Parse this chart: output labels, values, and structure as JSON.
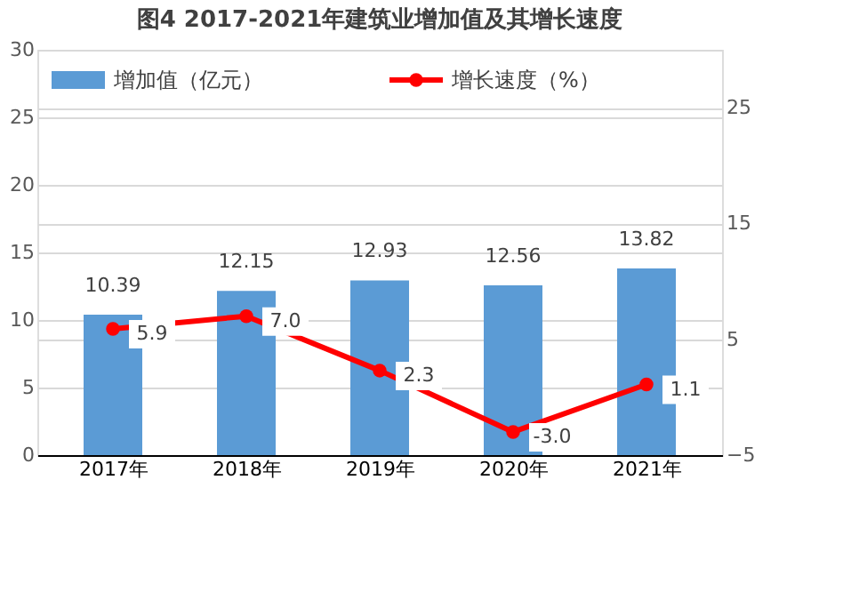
{
  "chart_data": {
    "type": "bar",
    "title": "图4   2017-2021年建筑业增加值及其增长速度",
    "categories": [
      "2017年",
      "2018年",
      "2019年",
      "2020年",
      "2021年"
    ],
    "series": [
      {
        "name": "增加值（亿元）",
        "color": "#5b9bd5",
        "values": [
          10.39,
          12.15,
          12.93,
          12.56,
          13.82
        ]
      },
      {
        "name": "增长速度（%）",
        "color": "#ff0000",
        "type": "line",
        "axis": "y2",
        "values": [
          5.9,
          7.0,
          2.3,
          -3.0,
          1.1
        ],
        "value_labels": [
          "5.9",
          "7.0",
          "2.3",
          "-3.0",
          "1.1"
        ]
      }
    ],
    "ylim": [
      0,
      30
    ],
    "yticks": [
      0,
      5,
      10,
      15,
      20,
      25,
      30
    ],
    "y2lim": [
      -5,
      30
    ],
    "y2ticks": [
      -5,
      5,
      15,
      25
    ],
    "data_labels": true,
    "grid": true,
    "legend": "top left",
    "marker": "circle"
  }
}
